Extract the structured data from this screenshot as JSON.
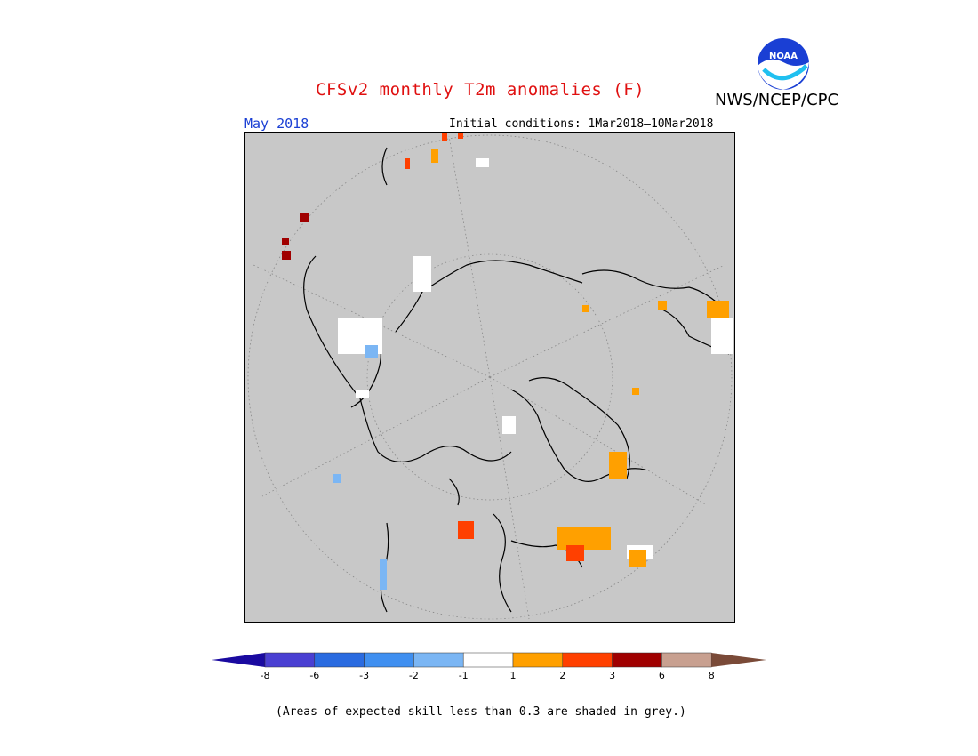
{
  "header": {
    "title": "CFSv2 monthly T2m anomalies (F)",
    "agency": "NWS/NCEP/CPC",
    "logo_text": "NOAA",
    "month": "May 2018",
    "initial_conditions": "Initial conditions: 1Mar2018–10Mar2018"
  },
  "colorbar": {
    "colors": [
      "#1a0aa0",
      "#4a3fd2",
      "#2a6be0",
      "#3f8ff0",
      "#7bb6f4",
      "#ffffff",
      "#ffa000",
      "#ff4000",
      "#a00000",
      "#c8a090",
      "#7a4a38"
    ],
    "ticks": [
      "-8",
      "-6",
      "-3",
      "-2",
      "-1",
      "1",
      "2",
      "3",
      "6",
      "8"
    ]
  },
  "map": {
    "background": "#c8c8c8",
    "projection": "north polar stereographic"
  },
  "footer": {
    "note": "(Areas of expected skill less than 0.3 are shaded in grey.)"
  }
}
